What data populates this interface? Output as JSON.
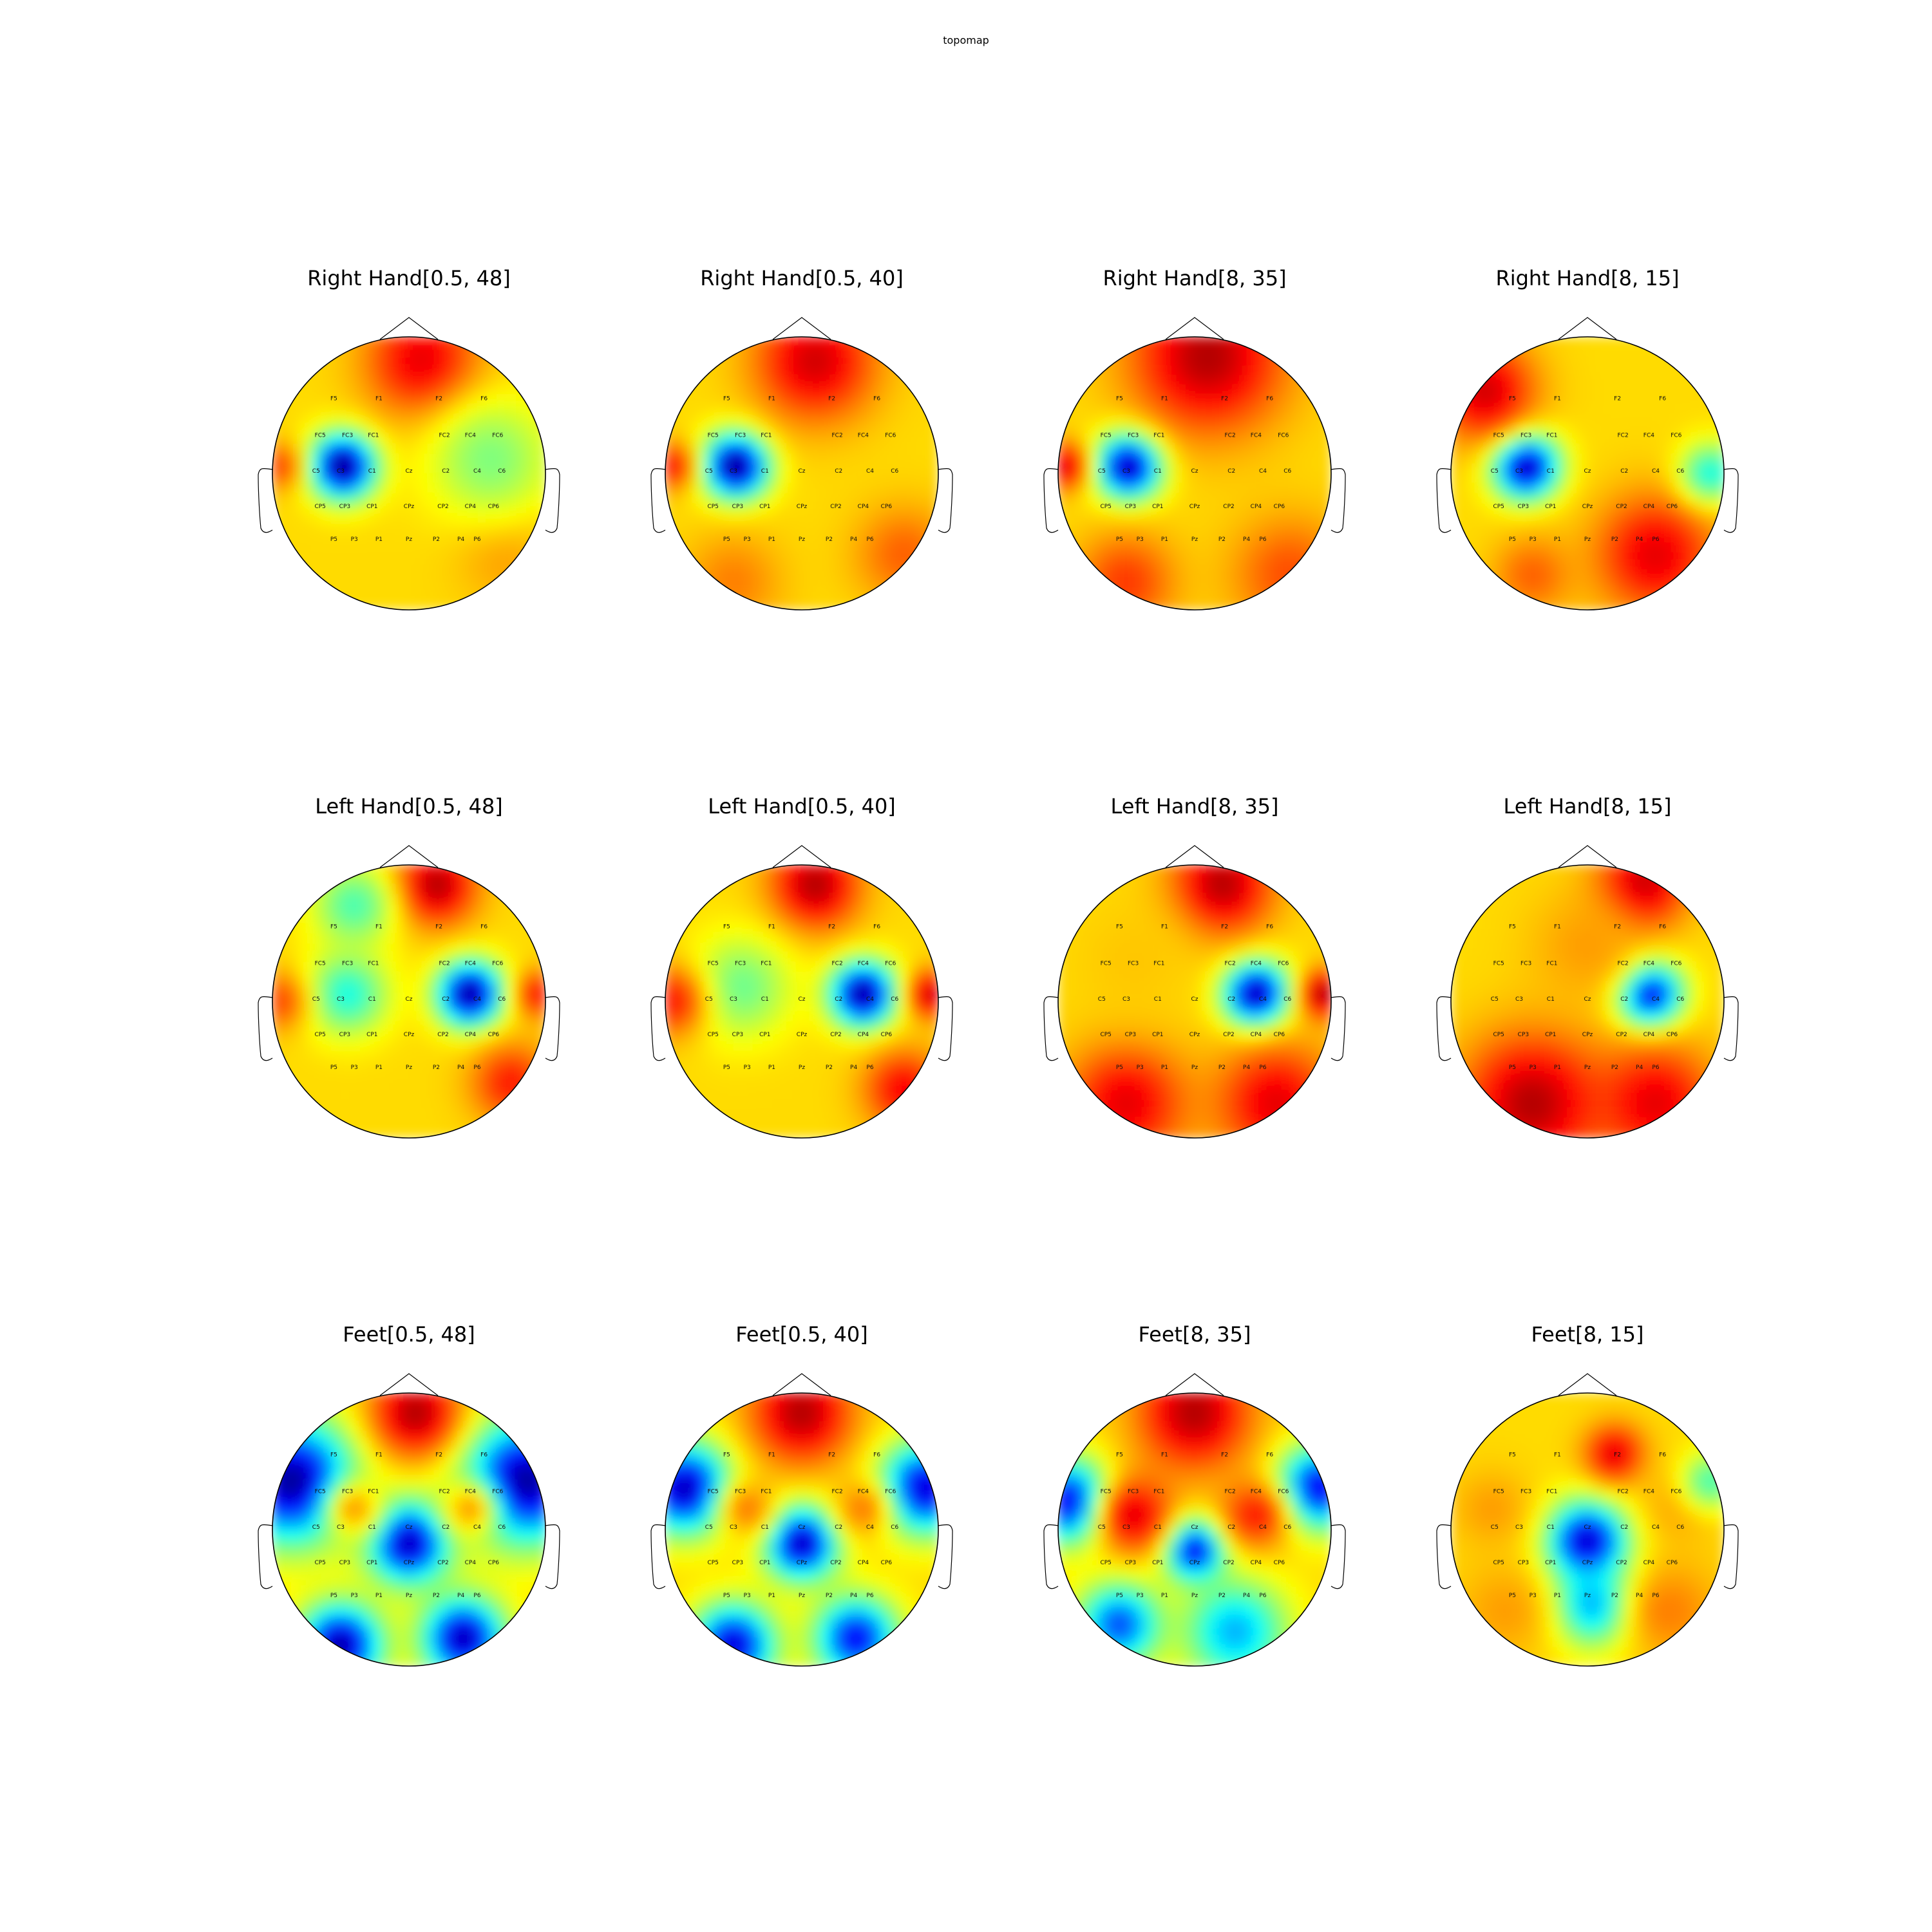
{
  "figure_title": "topomap",
  "colormap": "jet",
  "colors": {
    "jet": [
      "#00007f",
      "#0000ff",
      "#007fff",
      "#00ffff",
      "#7fff7f",
      "#ffff00",
      "#ff7f00",
      "#ff0000",
      "#7f0000"
    ],
    "outline": "#000000",
    "contour": "#333333"
  },
  "electrode_labels": {
    "F5": "F5",
    "F1": "F1",
    "F2": "F2",
    "F6": "F6",
    "FC5": "FC5",
    "FC3": "FC3",
    "FC1": "FC1",
    "FC2": "FC2",
    "FC4": "FC4",
    "FC6": "FC6",
    "C5": "C5",
    "C3": "C3",
    "C1": "C1",
    "Cz": "Cz",
    "C2": "C2",
    "C4": "C4",
    "C6": "C6",
    "CP5": "CP5",
    "CP3": "CP3",
    "CP1": "CP1",
    "CPz": "CPz",
    "CP2": "CP2",
    "CP4": "CP4",
    "CP6": "CP6",
    "P5": "P5",
    "P3": "P3",
    "P1": "P1",
    "Pz": "Pz",
    "P2": "P2",
    "P4": "P4",
    "P6": "P6"
  },
  "chart_data": [
    {
      "type": "heatmap",
      "title": "Right Hand[0.5, 48]",
      "blobs": [
        [
          -0.48,
          0.05,
          0.16,
          0.0
        ],
        [
          0.1,
          0.82,
          0.28,
          0.9
        ],
        [
          -0.95,
          0.05,
          0.12,
          0.8
        ],
        [
          0.7,
          -0.6,
          0.25,
          0.72
        ],
        [
          0.6,
          0.1,
          0.3,
          0.5
        ]
      ]
    },
    {
      "type": "heatmap",
      "title": "Right Hand[0.5, 40]",
      "blobs": [
        [
          -0.48,
          0.05,
          0.16,
          0.0
        ],
        [
          0.1,
          0.82,
          0.3,
          0.92
        ],
        [
          -0.95,
          0.05,
          0.12,
          0.85
        ],
        [
          0.75,
          -0.6,
          0.25,
          0.78
        ],
        [
          -0.5,
          -0.8,
          0.25,
          0.75
        ]
      ]
    },
    {
      "type": "heatmap",
      "title": "Right Hand[8, 35]",
      "blobs": [
        [
          -0.48,
          0.05,
          0.16,
          0.02
        ],
        [
          0.1,
          0.85,
          0.38,
          0.95
        ],
        [
          -0.95,
          0.05,
          0.12,
          0.9
        ],
        [
          0.7,
          -0.75,
          0.3,
          0.8
        ],
        [
          -0.5,
          -0.8,
          0.25,
          0.82
        ]
      ]
    },
    {
      "type": "heatmap",
      "title": "Right Hand[8, 15]",
      "blobs": [
        [
          -0.45,
          0.05,
          0.16,
          0.02
        ],
        [
          -0.75,
          0.6,
          0.25,
          0.92
        ],
        [
          0.5,
          -0.6,
          0.3,
          0.9
        ],
        [
          0.9,
          0.0,
          0.15,
          0.4
        ],
        [
          -0.4,
          -0.75,
          0.2,
          0.78
        ]
      ]
    },
    {
      "type": "heatmap",
      "title": "Left Hand[0.5, 48]",
      "blobs": [
        [
          0.45,
          0.05,
          0.16,
          0.02
        ],
        [
          0.2,
          0.85,
          0.2,
          0.95
        ],
        [
          -0.45,
          0.05,
          0.2,
          0.4
        ],
        [
          -0.4,
          0.7,
          0.2,
          0.45
        ],
        [
          0.95,
          0.05,
          0.12,
          0.85
        ],
        [
          -0.95,
          0.0,
          0.15,
          0.8
        ],
        [
          0.75,
          -0.6,
          0.2,
          0.85
        ]
      ]
    },
    {
      "type": "heatmap",
      "title": "Left Hand[0.5, 40]",
      "blobs": [
        [
          0.45,
          0.05,
          0.16,
          0.02
        ],
        [
          0.1,
          0.85,
          0.22,
          0.95
        ],
        [
          -0.45,
          0.1,
          0.25,
          0.48
        ],
        [
          0.95,
          0.05,
          0.12,
          0.92
        ],
        [
          -0.95,
          0.0,
          0.18,
          0.85
        ],
        [
          0.75,
          -0.65,
          0.2,
          0.88
        ]
      ]
    },
    {
      "type": "heatmap",
      "title": "Left Hand[8, 35]",
      "blobs": [
        [
          0.45,
          0.05,
          0.16,
          0.02
        ],
        [
          0.2,
          0.85,
          0.25,
          0.95
        ],
        [
          0.95,
          0.05,
          0.12,
          0.95
        ],
        [
          -0.5,
          -0.75,
          0.3,
          0.9
        ],
        [
          0.6,
          -0.75,
          0.3,
          0.9
        ],
        [
          -0.45,
          0.3,
          0.3,
          0.68
        ]
      ]
    },
    {
      "type": "heatmap",
      "title": "Left Hand[8, 15]",
      "blobs": [
        [
          0.45,
          0.05,
          0.16,
          0.02
        ],
        [
          0.4,
          0.85,
          0.22,
          0.95
        ],
        [
          -0.4,
          -0.75,
          0.35,
          0.95
        ],
        [
          0.5,
          -0.75,
          0.3,
          0.9
        ],
        [
          0.0,
          0.4,
          0.3,
          0.72
        ]
      ]
    },
    {
      "type": "heatmap",
      "title": "Feet[0.5, 48]",
      "blobs": [
        [
          -0.85,
          0.35,
          0.3,
          0.02
        ],
        [
          0.85,
          0.35,
          0.3,
          0.02
        ],
        [
          0.0,
          -0.1,
          0.2,
          0.05
        ],
        [
          -0.5,
          -0.85,
          0.2,
          0.03
        ],
        [
          0.4,
          -0.8,
          0.2,
          0.05
        ],
        [
          0.05,
          0.85,
          0.22,
          0.95
        ],
        [
          -0.4,
          0.15,
          0.15,
          0.72
        ],
        [
          0.45,
          0.15,
          0.15,
          0.72
        ]
      ]
    },
    {
      "type": "heatmap",
      "title": "Feet[0.5, 40]",
      "blobs": [
        [
          -0.85,
          0.3,
          0.22,
          0.05
        ],
        [
          0.9,
          0.3,
          0.22,
          0.08
        ],
        [
          0.0,
          -0.1,
          0.18,
          0.05
        ],
        [
          -0.5,
          -0.85,
          0.2,
          0.08
        ],
        [
          0.4,
          -0.8,
          0.2,
          0.12
        ],
        [
          0.0,
          0.85,
          0.25,
          0.95
        ],
        [
          -0.4,
          0.15,
          0.15,
          0.75
        ],
        [
          0.45,
          0.15,
          0.15,
          0.75
        ]
      ]
    },
    {
      "type": "heatmap",
      "title": "Feet[8, 35]",
      "blobs": [
        [
          -0.9,
          0.2,
          0.2,
          0.08
        ],
        [
          0.9,
          0.3,
          0.2,
          0.1
        ],
        [
          0.0,
          -0.15,
          0.15,
          0.08
        ],
        [
          0.0,
          0.85,
          0.28,
          0.95
        ],
        [
          -0.45,
          0.1,
          0.2,
          0.9
        ],
        [
          0.45,
          0.1,
          0.18,
          0.85
        ],
        [
          -0.55,
          -0.7,
          0.2,
          0.2
        ],
        [
          0.3,
          -0.75,
          0.25,
          0.3
        ]
      ]
    },
    {
      "type": "heatmap",
      "title": "Feet[8, 15]",
      "blobs": [
        [
          0.0,
          -0.1,
          0.2,
          0.05
        ],
        [
          0.05,
          -0.55,
          0.2,
          0.25
        ],
        [
          0.2,
          0.55,
          0.15,
          0.9
        ],
        [
          -0.7,
          0.15,
          0.2,
          0.72
        ],
        [
          0.7,
          0.2,
          0.2,
          0.72
        ],
        [
          0.9,
          0.35,
          0.15,
          0.45
        ],
        [
          0.6,
          -0.6,
          0.25,
          0.75
        ],
        [
          -0.6,
          -0.6,
          0.25,
          0.72
        ]
      ]
    }
  ]
}
